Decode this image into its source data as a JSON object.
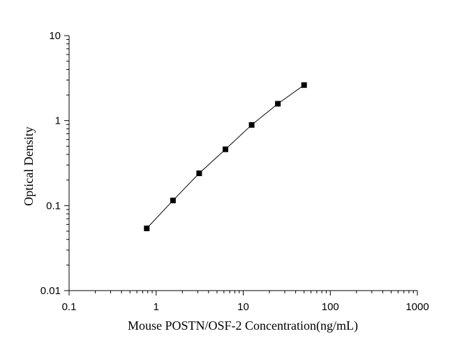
{
  "chart_data": {
    "type": "scatter",
    "title": "",
    "xlabel": "Mouse POSTN/OSF-2 Concentration(ng/mL)",
    "ylabel": "Optical Density",
    "xscale": "log",
    "yscale": "log",
    "xlim": [
      0.1,
      1000
    ],
    "ylim": [
      0.01,
      10
    ],
    "x_ticks": [
      "0.1",
      "1",
      "10",
      "100",
      "1000"
    ],
    "y_ticks": [
      "0.01",
      "0.1",
      "1",
      "10"
    ],
    "grid": false,
    "legend": "none",
    "marker": "square",
    "fit_curve": true,
    "series": [
      {
        "x": [
          0.78,
          1.56,
          3.12,
          6.25,
          12.5,
          25,
          50
        ],
        "y": [
          0.054,
          0.115,
          0.24,
          0.46,
          0.89,
          1.58,
          2.62
        ]
      }
    ]
  }
}
